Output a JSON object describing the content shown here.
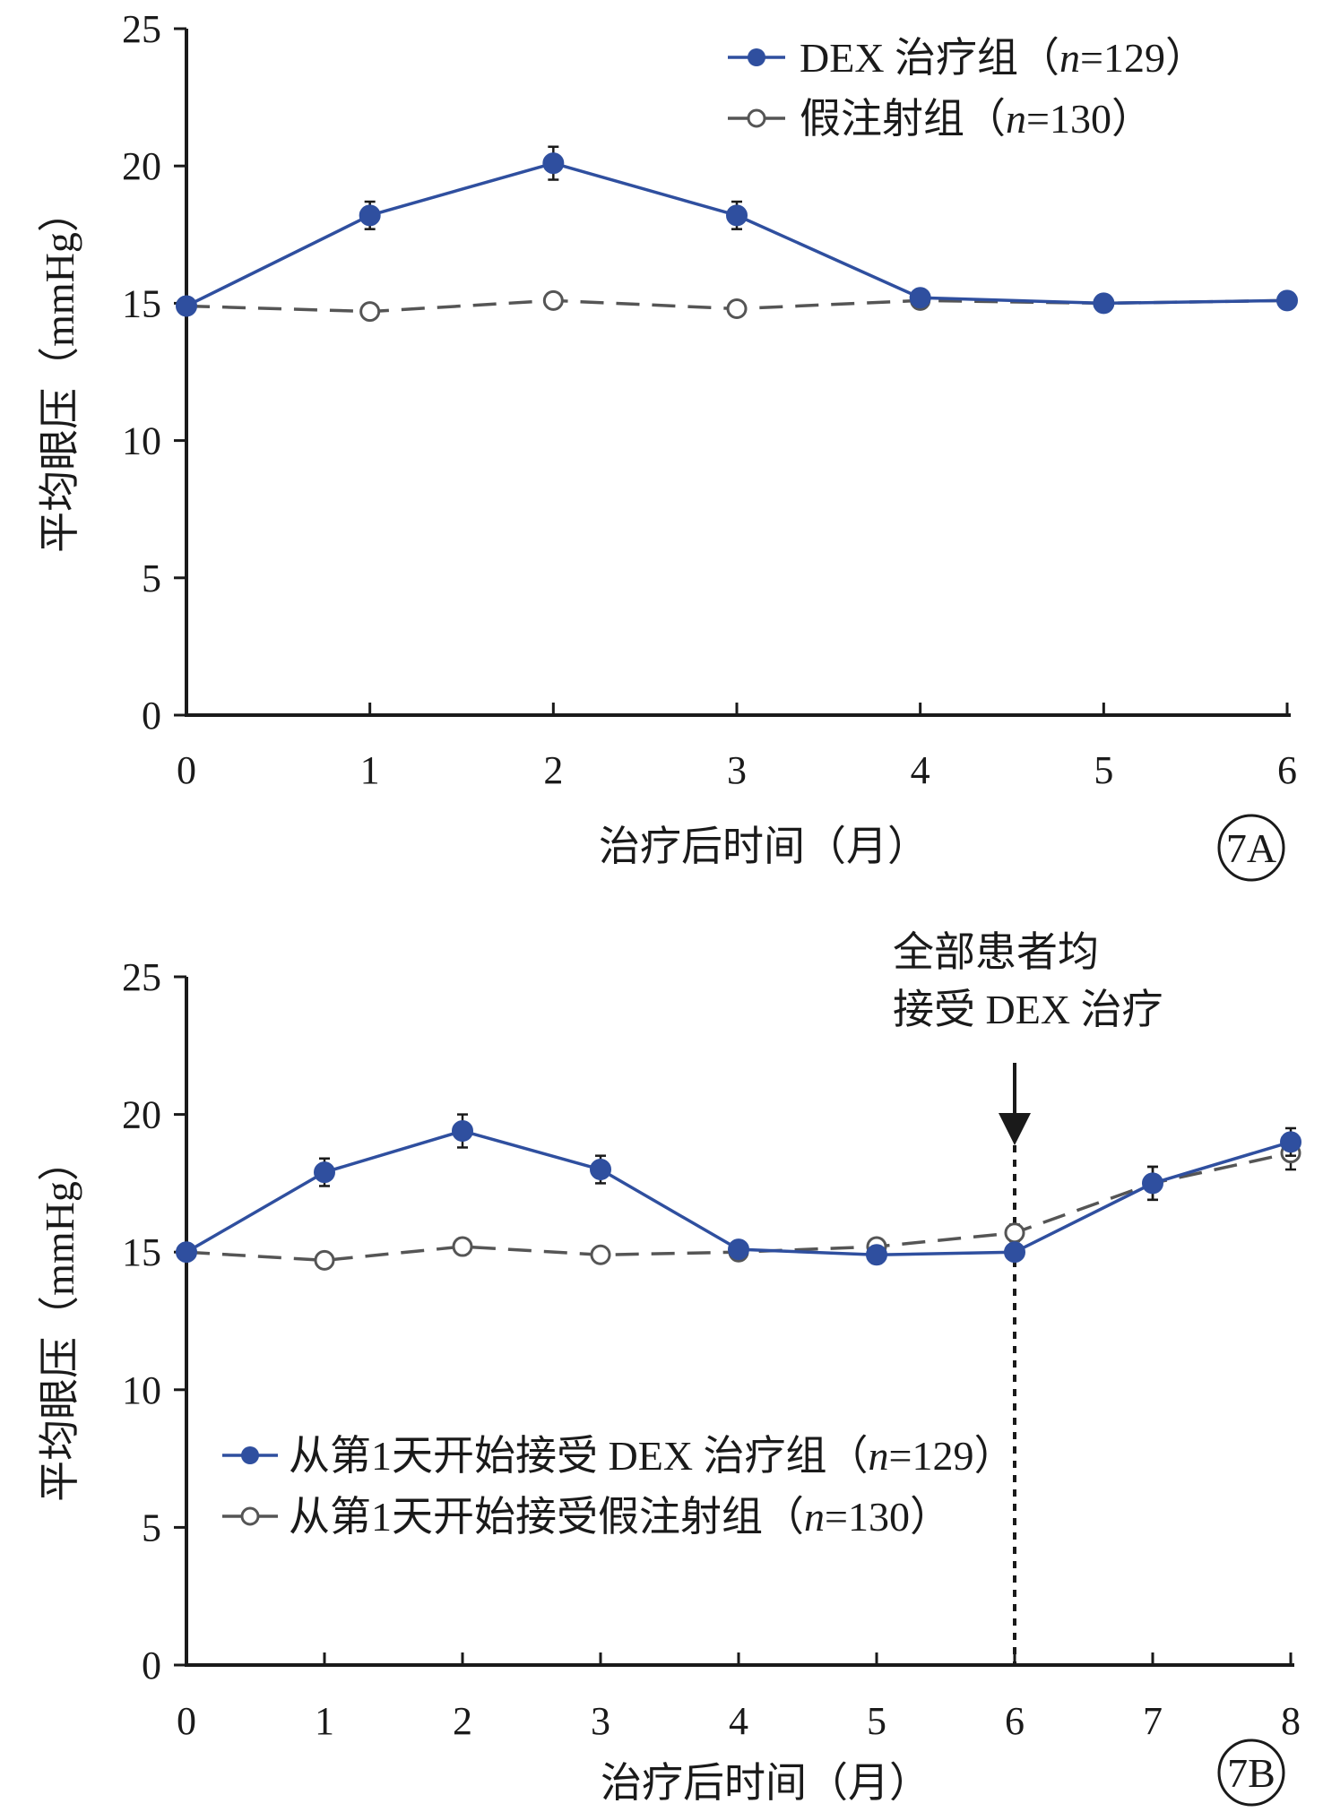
{
  "chart_data": [
    {
      "type": "line",
      "panel_label": "7A",
      "xlabel": "治疗后时间（月）",
      "ylabel": "平均眼压（mmHg）",
      "xlim": [
        0,
        6
      ],
      "ylim": [
        0,
        25
      ],
      "x_ticks": [
        0,
        1,
        2,
        3,
        4,
        5,
        6
      ],
      "y_ticks": [
        0,
        5,
        10,
        15,
        20,
        25
      ],
      "grid": false,
      "legend_position": "top-right",
      "series": [
        {
          "name": "DEX 治疗组（n=129）",
          "name_prefix": "DEX 治疗组（",
          "name_n": "n",
          "name_suffix": "=129）",
          "color": "#2f4f9f",
          "marker": "filled-circle",
          "line_style": "solid",
          "x": [
            0,
            1,
            2,
            3,
            4,
            5,
            6
          ],
          "values": [
            14.9,
            18.2,
            20.1,
            18.2,
            15.2,
            15.0,
            15.1
          ],
          "error": [
            0.2,
            0.5,
            0.6,
            0.5,
            0.2,
            0.2,
            0.2
          ]
        },
        {
          "name": "假注射组（n=130）",
          "name_prefix": "假注射组（",
          "name_n": "n",
          "name_suffix": "=130）",
          "color": "#555555",
          "marker": "open-circle",
          "line_style": "dashed",
          "x": [
            0,
            1,
            2,
            3,
            4,
            5,
            6
          ],
          "values": [
            14.9,
            14.7,
            15.1,
            14.8,
            15.1,
            15.0,
            15.1
          ],
          "error": [
            0.2,
            0.25,
            0.25,
            0.25,
            0.2,
            0.2,
            0.2
          ]
        }
      ]
    },
    {
      "type": "line",
      "panel_label": "7B",
      "xlabel": "治疗后时间（月）",
      "ylabel": "平均眼压（mmHg）",
      "xlim": [
        0,
        8
      ],
      "ylim": [
        0,
        25
      ],
      "x_ticks": [
        0,
        1,
        2,
        3,
        4,
        5,
        6,
        7,
        8
      ],
      "y_ticks": [
        0,
        5,
        10,
        15,
        20,
        25
      ],
      "grid": false,
      "legend_position": "bottom-left",
      "annotation": {
        "lines": [
          "全部患者均",
          "接受 DEX 治疗"
        ],
        "x": 6
      },
      "series": [
        {
          "name": "从第1天开始接受 DEX 治疗组（n=129）",
          "name_prefix": "从第1天开始接受 DEX 治疗组（",
          "name_n": "n",
          "name_suffix": "=129）",
          "color": "#2f4f9f",
          "marker": "filled-circle",
          "line_style": "solid",
          "x": [
            0,
            1,
            2,
            3,
            4,
            5,
            6,
            7,
            8
          ],
          "values": [
            15.0,
            17.9,
            19.4,
            18.0,
            15.1,
            14.9,
            15.0,
            17.5,
            19.0
          ],
          "error": [
            0.2,
            0.5,
            0.6,
            0.5,
            0.2,
            0.3,
            0.2,
            0.6,
            0.5
          ]
        },
        {
          "name": "从第1天开始接受假注射组（n=130）",
          "name_prefix": "从第1天开始接受假注射组（",
          "name_n": "n",
          "name_suffix": "=130）",
          "color": "#555555",
          "marker": "open-circle",
          "line_style": "dashed",
          "x": [
            0,
            1,
            2,
            3,
            4,
            5,
            6,
            7,
            8
          ],
          "values": [
            15.0,
            14.7,
            15.2,
            14.9,
            15.0,
            15.2,
            15.7,
            17.5,
            18.6
          ],
          "error": [
            0.2,
            0.25,
            0.25,
            0.25,
            0.2,
            0.25,
            0.3,
            0.6,
            0.6
          ]
        }
      ]
    }
  ]
}
